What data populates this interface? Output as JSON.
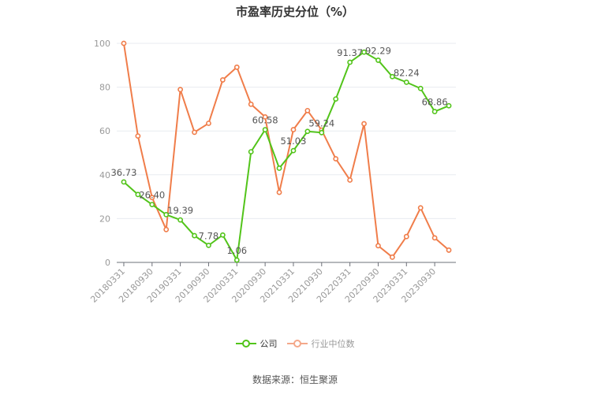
{
  "chart_data": {
    "type": "line",
    "title": "市盈率历史分位（%）",
    "xlabel": "",
    "ylabel": "",
    "ylim": [
      0,
      100
    ],
    "yticks": [
      0,
      20,
      40,
      60,
      80,
      100
    ],
    "grid": true,
    "legend_position": "bottom",
    "x_tick_labels": [
      "20180331",
      "20180930",
      "20190331",
      "20190930",
      "20200331",
      "20200930",
      "20210331",
      "20210930",
      "20220331",
      "20220930",
      "20230331",
      "20230930"
    ],
    "x": [
      "20180331",
      "20180630",
      "20180930",
      "20181231",
      "20190331",
      "20190630",
      "20190930",
      "20191231",
      "20200331",
      "20200630",
      "20200930",
      "20201231",
      "20210331",
      "20210630",
      "20210930",
      "20211231",
      "20220331",
      "20220630",
      "20220930",
      "20221231",
      "20230331",
      "20230630",
      "20230930",
      "20231231"
    ],
    "series": [
      {
        "name": "公司",
        "color": "#52c41a",
        "values": [
          36.73,
          31.0,
          26.4,
          21.8,
          19.39,
          12.2,
          7.78,
          12.5,
          1.06,
          50.5,
          60.58,
          43.0,
          51.03,
          59.8,
          59.24,
          74.6,
          91.37,
          96.0,
          92.29,
          84.8,
          82.24,
          79.4,
          68.86,
          71.5
        ],
        "labels": {
          "0": "36.73",
          "2": "26.40",
          "4": "19.39",
          "6": "7.78",
          "8": "1.06",
          "10": "60.58",
          "12": "51.03",
          "14": "59.24",
          "16": "91.37",
          "18": "92.29",
          "20": "82.24",
          "22": "68.86"
        }
      },
      {
        "name": "行业中位数",
        "color": "#f07d4a",
        "values": [
          100.0,
          57.7,
          29.6,
          15.0,
          78.9,
          59.4,
          63.5,
          83.3,
          89.1,
          72.2,
          66.4,
          32.0,
          60.6,
          69.3,
          60.4,
          47.3,
          37.6,
          63.3,
          7.6,
          2.4,
          11.8,
          24.9,
          11.2,
          5.6
        ]
      }
    ]
  },
  "legend": {
    "items": [
      {
        "label": "公司",
        "color": "#52c41a",
        "active": true
      },
      {
        "label": "行业中位数",
        "color": "#f4a88a",
        "active": false
      }
    ]
  },
  "footer": {
    "source": "数据来源：恒生聚源"
  }
}
